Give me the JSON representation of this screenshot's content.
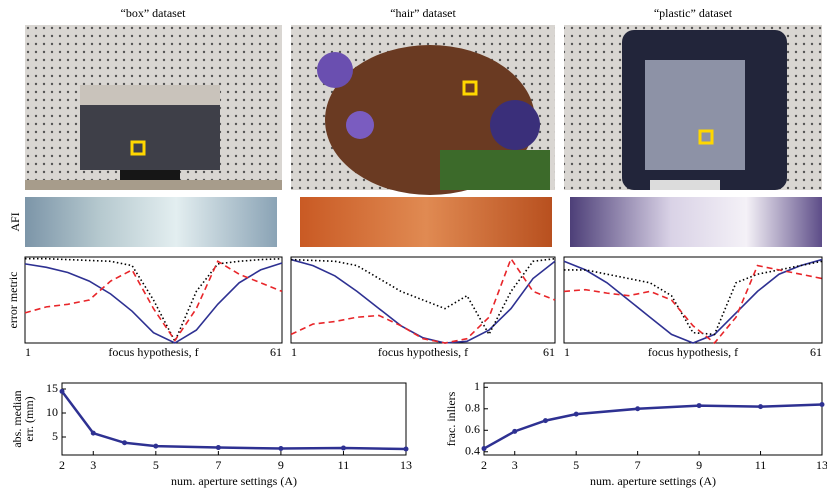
{
  "panels": [
    {
      "title": "“box” dataset"
    },
    {
      "title": "“hair” dataset"
    },
    {
      "title": "“plastic” dataset"
    }
  ],
  "afi_label": "AFI",
  "chart_data": [
    {
      "type": "line",
      "ylabel": "error metric",
      "xlabel": "focus hypothesis, f",
      "xlim": [
        1,
        61
      ],
      "ylim": [
        0,
        1
      ],
      "xticks": [
        1,
        61
      ],
      "x": [
        1,
        6,
        11,
        16,
        21,
        26,
        31,
        36,
        41,
        46,
        51,
        56,
        61
      ],
      "series": [
        {
          "color": "#2e3192",
          "linestyle": "solid",
          "values": [
            0.92,
            0.88,
            0.82,
            0.72,
            0.57,
            0.37,
            0.12,
            0.0,
            0.15,
            0.45,
            0.7,
            0.85,
            0.93
          ]
        },
        {
          "color": "#000000",
          "linestyle": "dotted",
          "values": [
            0.98,
            0.98,
            0.97,
            0.96,
            0.95,
            0.9,
            0.5,
            0.02,
            0.6,
            0.92,
            0.95,
            0.97,
            0.98
          ]
        },
        {
          "color": "#e8262a",
          "linestyle": "dashed",
          "values": [
            0.35,
            0.42,
            0.45,
            0.5,
            0.72,
            0.85,
            0.4,
            0.03,
            0.4,
            0.95,
            0.8,
            0.7,
            0.6
          ]
        }
      ]
    },
    {
      "type": "line",
      "xlabel": "focus hypothesis, f",
      "xlim": [
        1,
        61
      ],
      "ylim": [
        0,
        1
      ],
      "xticks": [
        1,
        61
      ],
      "x": [
        1,
        6,
        11,
        16,
        21,
        26,
        31,
        36,
        41,
        46,
        51,
        56,
        61
      ],
      "series": [
        {
          "color": "#2e3192",
          "linestyle": "solid",
          "values": [
            0.97,
            0.9,
            0.78,
            0.6,
            0.4,
            0.2,
            0.06,
            0.0,
            0.02,
            0.15,
            0.4,
            0.75,
            0.95
          ]
        },
        {
          "color": "#000000",
          "linestyle": "dotted",
          "values": [
            0.97,
            0.96,
            0.95,
            0.9,
            0.75,
            0.6,
            0.5,
            0.4,
            0.55,
            0.1,
            0.6,
            0.95,
            0.98
          ]
        },
        {
          "color": "#e8262a",
          "linestyle": "dashed",
          "values": [
            0.1,
            0.22,
            0.25,
            0.3,
            0.32,
            0.2,
            0.05,
            0.0,
            0.05,
            0.3,
            0.98,
            0.6,
            0.5
          ]
        }
      ]
    },
    {
      "type": "line",
      "xlabel": "focus hypothesis, f",
      "xlim": [
        1,
        61
      ],
      "ylim": [
        0,
        1
      ],
      "xticks": [
        1,
        61
      ],
      "x": [
        1,
        6,
        11,
        16,
        21,
        26,
        31,
        36,
        41,
        46,
        51,
        56,
        61
      ],
      "series": [
        {
          "color": "#2e3192",
          "linestyle": "solid",
          "values": [
            0.95,
            0.85,
            0.7,
            0.5,
            0.3,
            0.1,
            0.0,
            0.1,
            0.35,
            0.6,
            0.8,
            0.9,
            0.97
          ]
        },
        {
          "color": "#000000",
          "linestyle": "dotted",
          "values": [
            0.85,
            0.85,
            0.8,
            0.75,
            0.7,
            0.55,
            0.12,
            0.1,
            0.7,
            0.8,
            0.85,
            0.9,
            0.95
          ]
        },
        {
          "color": "#e8262a",
          "linestyle": "dashed",
          "values": [
            0.6,
            0.62,
            0.58,
            0.55,
            0.6,
            0.5,
            0.2,
            0.0,
            0.3,
            0.9,
            0.85,
            0.8,
            0.75
          ]
        }
      ]
    },
    {
      "type": "line",
      "ylabel": [
        "abs. median",
        "err. (mm)"
      ],
      "xlabel": "num. aperture settings (A)",
      "xlim": [
        2,
        13
      ],
      "ylim": [
        1.25,
        16.25
      ],
      "xticks": [
        2,
        3,
        5,
        7,
        9,
        11,
        13
      ],
      "yticks": [
        5,
        10,
        15
      ],
      "x": [
        2,
        3,
        4,
        5,
        7,
        9,
        11,
        13
      ],
      "series": [
        {
          "color": "#2e3192",
          "linestyle": "solid",
          "marker": "o",
          "values": [
            14.5,
            5.8,
            3.8,
            3.1,
            2.8,
            2.6,
            2.7,
            2.5
          ]
        }
      ]
    },
    {
      "type": "line",
      "ylabel": "frac. inliers",
      "xlabel": "num. aperture settings (A)",
      "xlim": [
        2,
        13
      ],
      "ylim": [
        0.37,
        1.04
      ],
      "xticks": [
        2,
        3,
        5,
        7,
        9,
        11,
        13
      ],
      "yticks": [
        0.4,
        0.6,
        0.8,
        1
      ],
      "x": [
        2,
        3,
        4,
        5,
        7,
        9,
        11,
        13
      ],
      "series": [
        {
          "color": "#2e3192",
          "linestyle": "solid",
          "marker": "o",
          "values": [
            0.43,
            0.59,
            0.69,
            0.75,
            0.8,
            0.83,
            0.82,
            0.84
          ]
        }
      ]
    }
  ]
}
